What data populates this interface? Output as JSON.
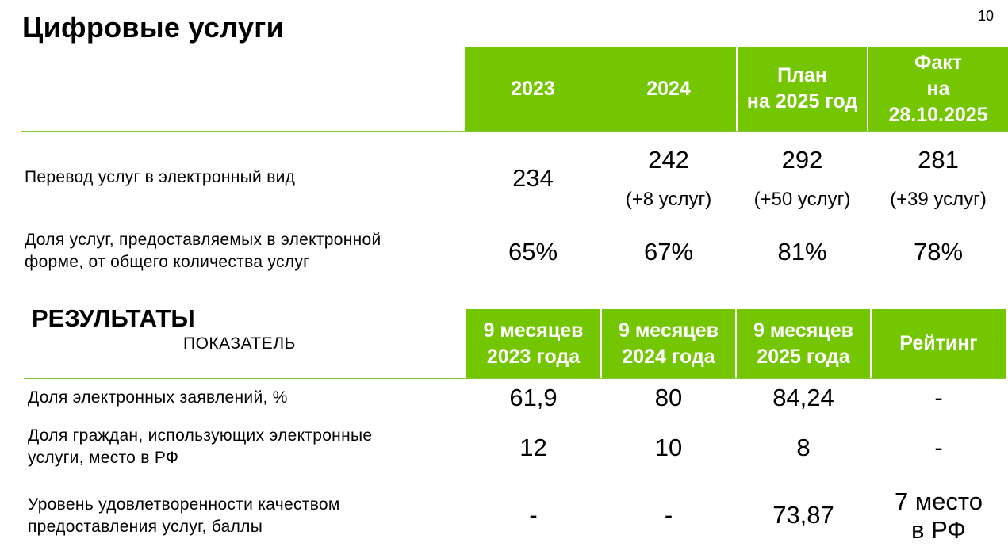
{
  "page": {
    "title": "Цифровые услуги",
    "number": "10"
  },
  "table1": {
    "headers": [
      "2023",
      "2024",
      "План\nна 2025 год",
      "Факт\nна\n28.10.2025"
    ],
    "rows": [
      {
        "label": "Перевод услуг в электронный вид",
        "cells": [
          {
            "value": "234",
            "note": ""
          },
          {
            "value": "242",
            "note": "(+8 услуг)"
          },
          {
            "value": "292",
            "note": "(+50 услуг)"
          },
          {
            "value": "281",
            "note": "(+39 услуг)"
          }
        ]
      },
      {
        "label": "Доля услуг, предоставляемых в электронной\nформе, от общего количества услуг",
        "cells": [
          {
            "value": "65%"
          },
          {
            "value": "67%"
          },
          {
            "value": "81%"
          },
          {
            "value": "78%"
          }
        ]
      }
    ]
  },
  "table2": {
    "section_title": "РЕЗУЛЬТАТЫ",
    "indicator_header": "ПОКАЗАТЕЛЬ",
    "headers": [
      "9 месяцев\n2023 года",
      "9 месяцев\n2024 года",
      "9 месяцев\n2025 года",
      "Рейтинг"
    ],
    "rows": [
      {
        "label": "Доля электронных заявлений, %",
        "cells": [
          "61,9",
          "80",
          "84,24",
          "-"
        ]
      },
      {
        "label": "Доля граждан, использующих электронные\nуслуги, место в РФ",
        "cells": [
          "12",
          "10",
          "8",
          "-"
        ]
      },
      {
        "label": "Уровень удовлетворенности качеством\nпредоставления услуг, баллы",
        "cells": [
          "-",
          "-",
          "73,87",
          "7 место\nв РФ"
        ]
      }
    ]
  },
  "colors": {
    "accent": "#74c602",
    "rule": "#86c832"
  }
}
